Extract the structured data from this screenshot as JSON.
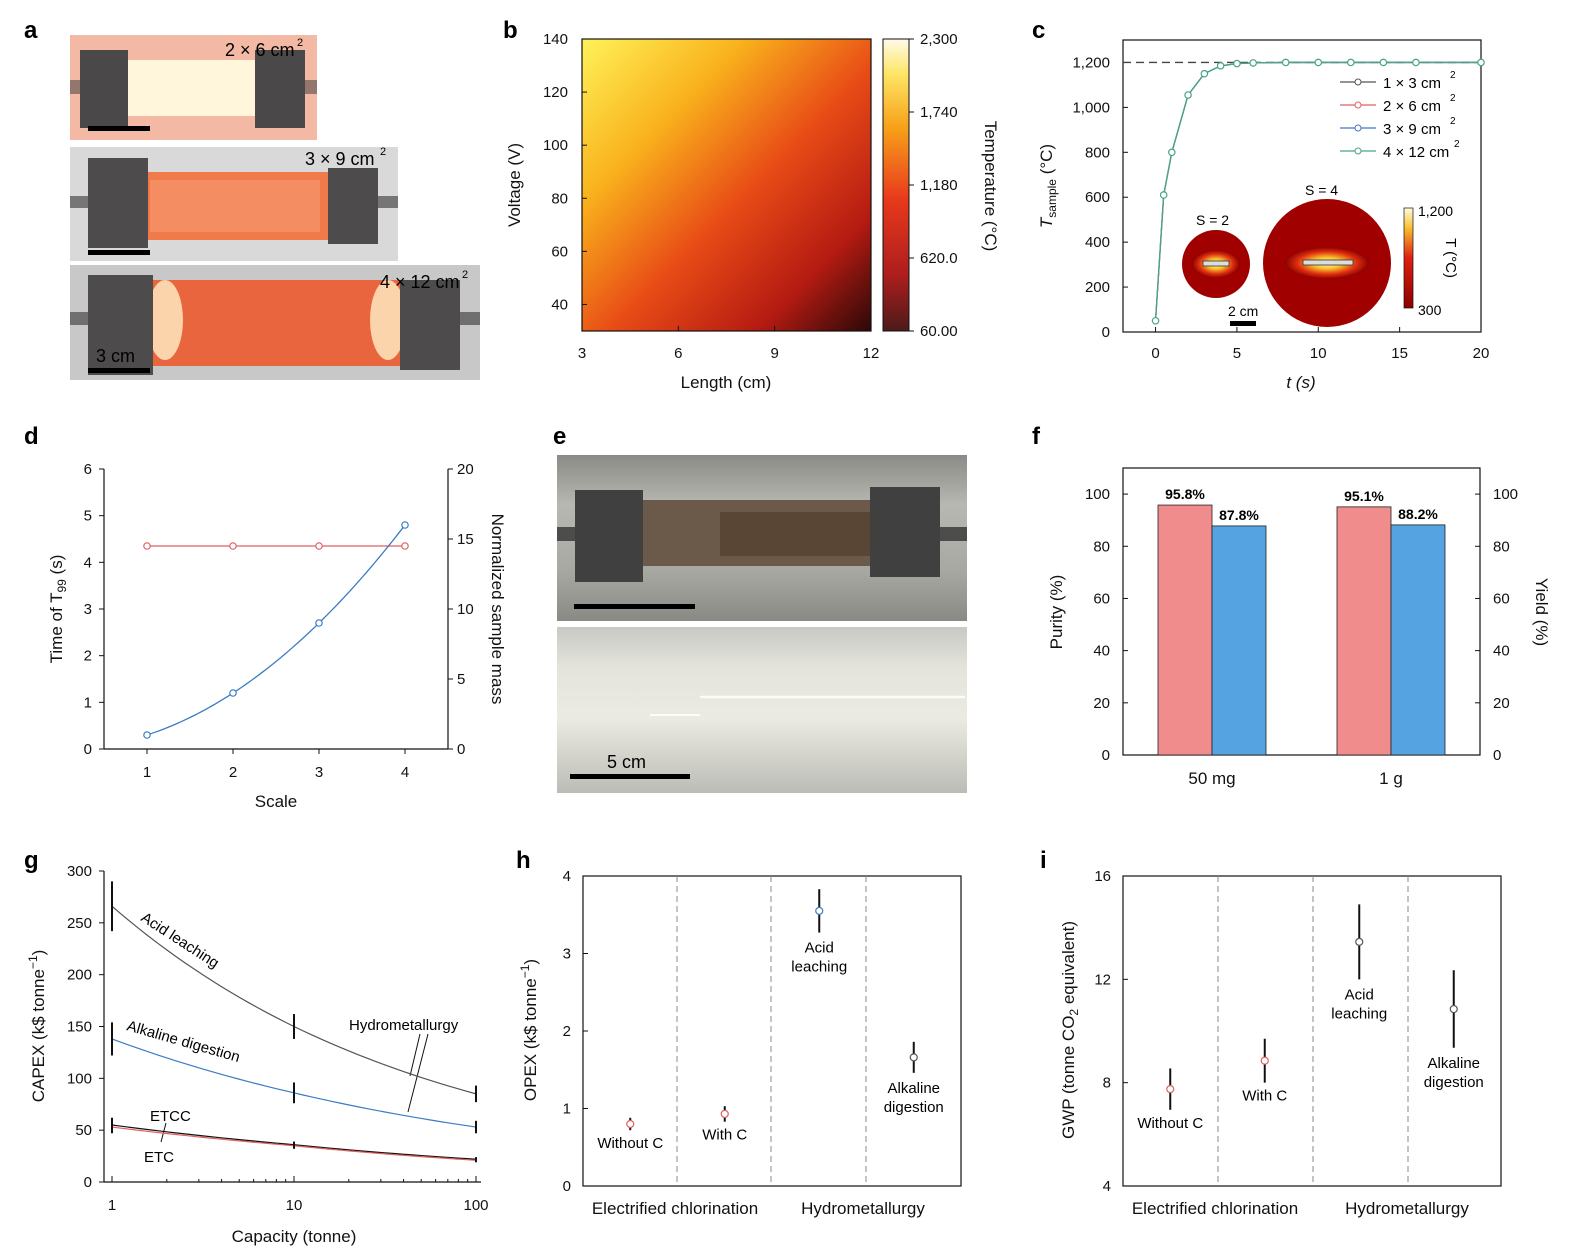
{
  "panel_letters": [
    "a",
    "b",
    "c",
    "d",
    "e",
    "f",
    "g",
    "h",
    "i"
  ],
  "colors": {
    "red": "#e06060",
    "blue": "#3b7cc4",
    "green": "#4aa38a",
    "dark": "#555555",
    "bar_purity": "#f08c8c",
    "bar_yield": "#55a3e0",
    "purity_axis": "#e05a5a",
    "yield_axis": "#3a90d8"
  },
  "panel_a": {
    "photos": [
      {
        "caption": "2 × 6 cm",
        "sup": "2",
        "glow": "#fff6dc",
        "bg": "#f3b9a4"
      },
      {
        "caption": "3 × 9 cm",
        "sup": "2",
        "glow": "#f07a4a",
        "bg": "#d9d9d9"
      },
      {
        "caption": "4 × 12 cm",
        "sup": "2",
        "glow": "#e8653e",
        "bg": "#c8c8c8"
      }
    ],
    "scale_label": "3 cm"
  },
  "chart_data": [
    {
      "panel": "b",
      "type": "heatmap",
      "xlabel": "Length (cm)",
      "ylabel": "Voltage (V)",
      "xlim": [
        3,
        12
      ],
      "ylim": [
        30,
        140
      ],
      "xticks": [
        "3",
        "6",
        "9",
        "12"
      ],
      "yticks": [
        "40",
        "60",
        "80",
        "100",
        "120",
        "140"
      ],
      "colorbar": {
        "label": "Temperature (°C)",
        "ticks": [
          "2,300",
          "1,740",
          "1,180",
          "620.0",
          "60.00"
        ],
        "range": [
          60,
          2300
        ]
      },
      "corners": {
        "low_length_high_voltage": 2300,
        "high_length_low_voltage": 60
      }
    },
    {
      "panel": "c",
      "type": "line",
      "xlabel": "t (s)",
      "ylabel": "T",
      "ylabel_sub": "sample",
      "ylabel_unit": " (°C)",
      "xlim": [
        -2,
        20
      ],
      "ylim": [
        0,
        1300
      ],
      "xticks": [
        "0",
        "5",
        "10",
        "15",
        "20"
      ],
      "yticks": [
        "0",
        "200",
        "400",
        "600",
        "800",
        "1,000",
        "1,200"
      ],
      "reference_line": 1200,
      "series": [
        {
          "name": "1 × 3 cm",
          "sup": "2",
          "color": "#555555"
        },
        {
          "name": "2 × 6 cm",
          "sup": "2",
          "color": "#e06060"
        },
        {
          "name": "3 × 9 cm",
          "sup": "2",
          "color": "#3b7cc4"
        },
        {
          "name": "4 × 12 cm",
          "sup": "2",
          "color": "#4aa38a"
        }
      ],
      "x": [
        0,
        0.5,
        1,
        2,
        3,
        4,
        5,
        6,
        8,
        10,
        12,
        14,
        16,
        20
      ],
      "y": [
        50,
        610,
        800,
        1055,
        1150,
        1185,
        1195,
        1198,
        1200,
        1200,
        1200,
        1200,
        1200,
        1200
      ],
      "inset": {
        "s2": "S = 2",
        "s4": "S = 4",
        "scale": "2 cm",
        "cb_top": "1,200",
        "cb_bottom": "300",
        "cb_label": "T (°C)"
      }
    },
    {
      "panel": "d",
      "type": "line",
      "xlabel": "Scale",
      "ylabel_left": "Time of T",
      "ylabel_left_sub": "99",
      "ylabel_left_unit": " (s)",
      "ylabel_right": "Normalized sample mass",
      "x": [
        1,
        2,
        3,
        4
      ],
      "xticks": [
        "1",
        "2",
        "3",
        "4"
      ],
      "ylim_left": [
        0,
        6
      ],
      "yticks_left": [
        "0",
        "1",
        "2",
        "3",
        "4",
        "5",
        "6"
      ],
      "ylim_right": [
        0,
        20
      ],
      "yticks_right": [
        "0",
        "5",
        "10",
        "15",
        "20"
      ],
      "series": [
        {
          "name": "Time of T99",
          "axis": "left",
          "color": "#e06060",
          "values": [
            4.35,
            4.35,
            4.35,
            4.35
          ]
        },
        {
          "name": "Normalized sample mass",
          "axis": "right",
          "color": "#3b7cc4",
          "values": [
            1,
            4,
            9,
            16
          ]
        }
      ]
    },
    {
      "panel": "f",
      "type": "bar",
      "categories": [
        "50 mg",
        "1 g"
      ],
      "ylabel_left": "Purity (%)",
      "ylabel_right": "Yield (%)",
      "ylim": [
        0,
        110
      ],
      "yticks": [
        "0",
        "20",
        "40",
        "60",
        "80",
        "100"
      ],
      "series": [
        {
          "name": "Purity",
          "values": [
            95.8,
            95.1
          ],
          "labels": [
            "95.8%",
            "95.1%"
          ]
        },
        {
          "name": "Yield",
          "values": [
            87.8,
            88.2
          ],
          "labels": [
            "87.8%",
            "88.2%"
          ]
        }
      ]
    },
    {
      "panel": "g",
      "type": "line",
      "xscale": "log",
      "xlabel": "Capacity (tonne)",
      "ylabel": "CAPEX (k$ tonne",
      "ylabel_sup": "−1",
      "ylabel_end": ")",
      "xlim": [
        1,
        100
      ],
      "ylim": [
        0,
        300
      ],
      "xticks": [
        "1",
        "10",
        "100"
      ],
      "yticks": [
        "0",
        "50",
        "100",
        "150",
        "200",
        "250",
        "300"
      ],
      "x": [
        1,
        10,
        100
      ],
      "series": [
        {
          "name": "Acid leaching",
          "color": "#555555",
          "values": [
            266,
            150,
            85
          ],
          "err": [
            24,
            12,
            8
          ]
        },
        {
          "name": "Alkaline digestion",
          "color": "#3b7cc4",
          "values": [
            138,
            86,
            53
          ],
          "err": [
            16,
            10,
            6
          ]
        },
        {
          "name": "ETCC",
          "color": "#111111",
          "values": [
            55,
            36,
            22
          ],
          "err": [
            7,
            3,
            2
          ]
        },
        {
          "name": "ETC",
          "color": "#e06060",
          "values": [
            53,
            35,
            21
          ],
          "err": [
            6,
            3,
            2
          ]
        }
      ],
      "annotations": [
        "Hydrometallurgy",
        "ETCC",
        "ETC"
      ]
    },
    {
      "panel": "h",
      "type": "scatter",
      "ylabel": "OPEX (k$ tonne",
      "ylabel_sup": "−1",
      "ylabel_end": ")",
      "ylim": [
        0,
        4
      ],
      "yticks": [
        "0",
        "1",
        "2",
        "3",
        "4"
      ],
      "groups": [
        "Electrified chlorination",
        "Hydrometallurgy"
      ],
      "points": [
        {
          "label": "Without C",
          "value": 0.8,
          "err": 0.08,
          "color": "#e06060"
        },
        {
          "label": "With C",
          "value": 0.93,
          "err": 0.1,
          "color": "#e06060"
        },
        {
          "label": "Acid leaching",
          "value": 3.55,
          "err": 0.28,
          "color": "#3b7cc4"
        },
        {
          "label": "Alkaline digestion",
          "value": 1.66,
          "err": 0.2,
          "color": "#555555"
        }
      ]
    },
    {
      "panel": "i",
      "type": "scatter",
      "ylabel": "GWP (tonne CO",
      "ylabel_sub": "2",
      "ylabel_end": " equivalent)",
      "ylim": [
        4,
        16
      ],
      "yticks": [
        "4",
        "8",
        "12",
        "16"
      ],
      "groups": [
        "Electrified chlorination",
        "Hydrometallurgy"
      ],
      "points": [
        {
          "label": "Without C",
          "value": 7.75,
          "err": 0.8,
          "color": "#e06060"
        },
        {
          "label": "With C",
          "value": 8.85,
          "err": 0.85,
          "color": "#e06060"
        },
        {
          "label": "Acid leaching",
          "value": 13.45,
          "err": 1.45,
          "color": "#555555"
        },
        {
          "label": "Alkaline digestion",
          "value": 10.85,
          "err": 1.5,
          "color": "#555555"
        }
      ]
    }
  ],
  "panel_e": {
    "scale_label": "5 cm"
  }
}
